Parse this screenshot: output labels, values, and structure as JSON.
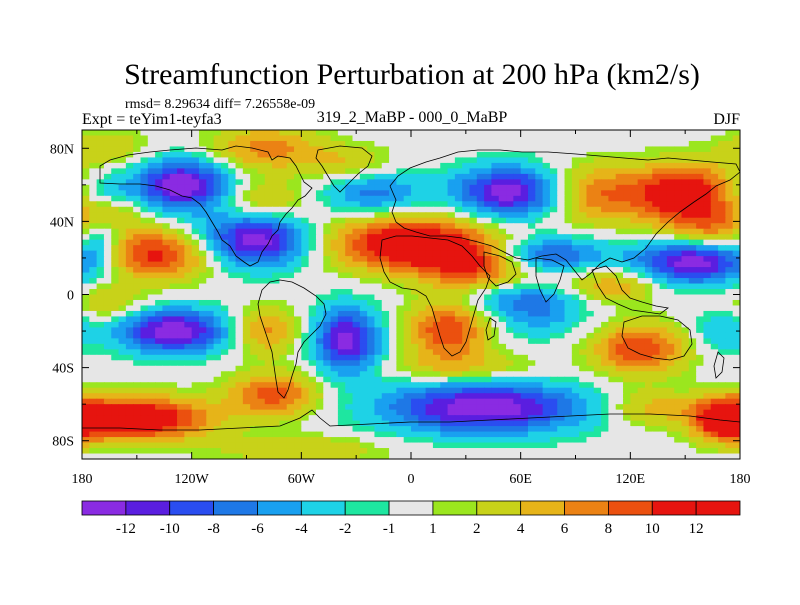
{
  "chart_data": {
    "type": "heatmap",
    "title": "Streamfunction Perturbation at 200 hPa (km2/s)",
    "subtitle_stats": "rmsd= 8.29634 diff= 7.26558e-09",
    "left_label": "Expt = teYim1-teyfa3",
    "center_label": "319_2_MaBP - 000_0_MaBP",
    "right_label": "DJF",
    "x_ticks": [
      "180",
      "120W",
      "60W",
      "0",
      "60E",
      "120E",
      "180"
    ],
    "x_tick_values": [
      -180,
      -120,
      -60,
      0,
      60,
      120,
      180
    ],
    "y_ticks": [
      "80N",
      "40N",
      "0",
      "40S",
      "80S"
    ],
    "y_tick_values": [
      80,
      40,
      0,
      -40,
      -80
    ],
    "xlim": [
      -180,
      180
    ],
    "ylim": [
      -90,
      90
    ],
    "colorbar_labels": [
      "-12",
      "-10",
      "-8",
      "-6",
      "-4",
      "-2",
      "-1",
      "1",
      "2",
      "4",
      "6",
      "8",
      "10",
      "12"
    ],
    "levels": [
      -12,
      -10,
      -8,
      -6,
      -4,
      -2,
      -1,
      1,
      2,
      4,
      6,
      8,
      10,
      12
    ],
    "colors": [
      "#8a2be2",
      "#5a1ee0",
      "#2a4df0",
      "#1e78e6",
      "#19a0f0",
      "#1ed2e6",
      "#1ee6a0",
      "#e6e6e6",
      "#9be61e",
      "#c8d219",
      "#e6b419",
      "#eb8214",
      "#eb500f",
      "#e6140f",
      "#e6140f"
    ],
    "anomalies": [
      {
        "lon": -125,
        "lat": 60,
        "amp": -14,
        "rlon": 25,
        "rlat": 14
      },
      {
        "lon": -168,
        "lat": 55,
        "amp": -4,
        "rlon": 18,
        "rlat": 12
      },
      {
        "lon": -168,
        "lat": 80,
        "amp": 4,
        "rlon": 25,
        "rlat": 10
      },
      {
        "lon": -80,
        "lat": 80,
        "amp": 7,
        "rlon": 30,
        "rlat": 12
      },
      {
        "lon": -165,
        "lat": 45,
        "amp": 5,
        "rlon": 18,
        "rlat": 10
      },
      {
        "lon": -80,
        "lat": 50,
        "amp": 5,
        "rlon": 25,
        "rlat": 12
      },
      {
        "lon": -35,
        "lat": 72,
        "amp": 4,
        "rlon": 25,
        "rlat": 10
      },
      {
        "lon": -140,
        "lat": 22,
        "amp": 11,
        "rlon": 32,
        "rlat": 14
      },
      {
        "lon": -85,
        "lat": 30,
        "amp": -14,
        "rlon": 30,
        "rlat": 15
      },
      {
        "lon": -170,
        "lat": 30,
        "amp": -6,
        "rlon": 12,
        "rlat": 14
      },
      {
        "lon": -20,
        "lat": 55,
        "amp": -7,
        "rlon": 28,
        "rlat": 12
      },
      {
        "lon": 0,
        "lat": 28,
        "amp": 14,
        "rlon": 45,
        "rlat": 15
      },
      {
        "lon": 35,
        "lat": 15,
        "amp": 8,
        "rlon": 30,
        "rlat": 12
      },
      {
        "lon": 55,
        "lat": 56,
        "amp": -14,
        "rlon": 30,
        "rlat": 14
      },
      {
        "lon": 100,
        "lat": 55,
        "amp": 8,
        "rlon": 30,
        "rlat": 16
      },
      {
        "lon": 150,
        "lat": 55,
        "amp": 13,
        "rlon": 28,
        "rlat": 16
      },
      {
        "lon": 165,
        "lat": 35,
        "amp": 6,
        "rlon": 25,
        "rlat": 12
      },
      {
        "lon": 75,
        "lat": 22,
        "amp": -9,
        "rlon": 30,
        "rlat": 10
      },
      {
        "lon": 155,
        "lat": 18,
        "amp": -14,
        "rlon": 32,
        "rlat": 12
      },
      {
        "lon": 110,
        "lat": 5,
        "amp": 6,
        "rlon": 25,
        "rlat": 9
      },
      {
        "lon": 60,
        "lat": -2,
        "amp": -5,
        "rlon": 30,
        "rlat": 8
      },
      {
        "lon": -130,
        "lat": -20,
        "amp": -14,
        "rlon": 30,
        "rlat": 12
      },
      {
        "lon": -165,
        "lat": -5,
        "amp": 4,
        "rlon": 20,
        "rlat": 10
      },
      {
        "lon": -80,
        "lat": -20,
        "amp": 7,
        "rlon": 18,
        "rlat": 13
      },
      {
        "lon": -35,
        "lat": -25,
        "amp": -13,
        "rlon": 18,
        "rlat": 18
      },
      {
        "lon": -75,
        "lat": -55,
        "amp": 9,
        "rlon": 25,
        "rlat": 12
      },
      {
        "lon": 20,
        "lat": -20,
        "amp": 10,
        "rlon": 22,
        "rlat": 16
      },
      {
        "lon": 70,
        "lat": -12,
        "amp": -5,
        "rlon": 25,
        "rlat": 12
      },
      {
        "lon": 125,
        "lat": -30,
        "amp": 10,
        "rlon": 25,
        "rlat": 14
      },
      {
        "lon": 170,
        "lat": -20,
        "amp": -4,
        "rlon": 15,
        "rlat": 12
      },
      {
        "lon": 40,
        "lat": -62,
        "amp": -14,
        "rlon": 55,
        "rlat": 14
      },
      {
        "lon": -150,
        "lat": -68,
        "amp": 14,
        "rlon": 40,
        "rlat": 12
      },
      {
        "lon": 172,
        "lat": -68,
        "amp": 12,
        "rlon": 18,
        "rlat": 12
      },
      {
        "lon": -60,
        "lat": -85,
        "amp": 4,
        "rlon": 45,
        "rlat": 8
      },
      {
        "lon": 130,
        "lat": -62,
        "amp": 5,
        "rlon": 25,
        "rlat": 10
      },
      {
        "lon": 30,
        "lat": -40,
        "amp": 4,
        "rlon": 40,
        "rlat": 8
      }
    ]
  }
}
